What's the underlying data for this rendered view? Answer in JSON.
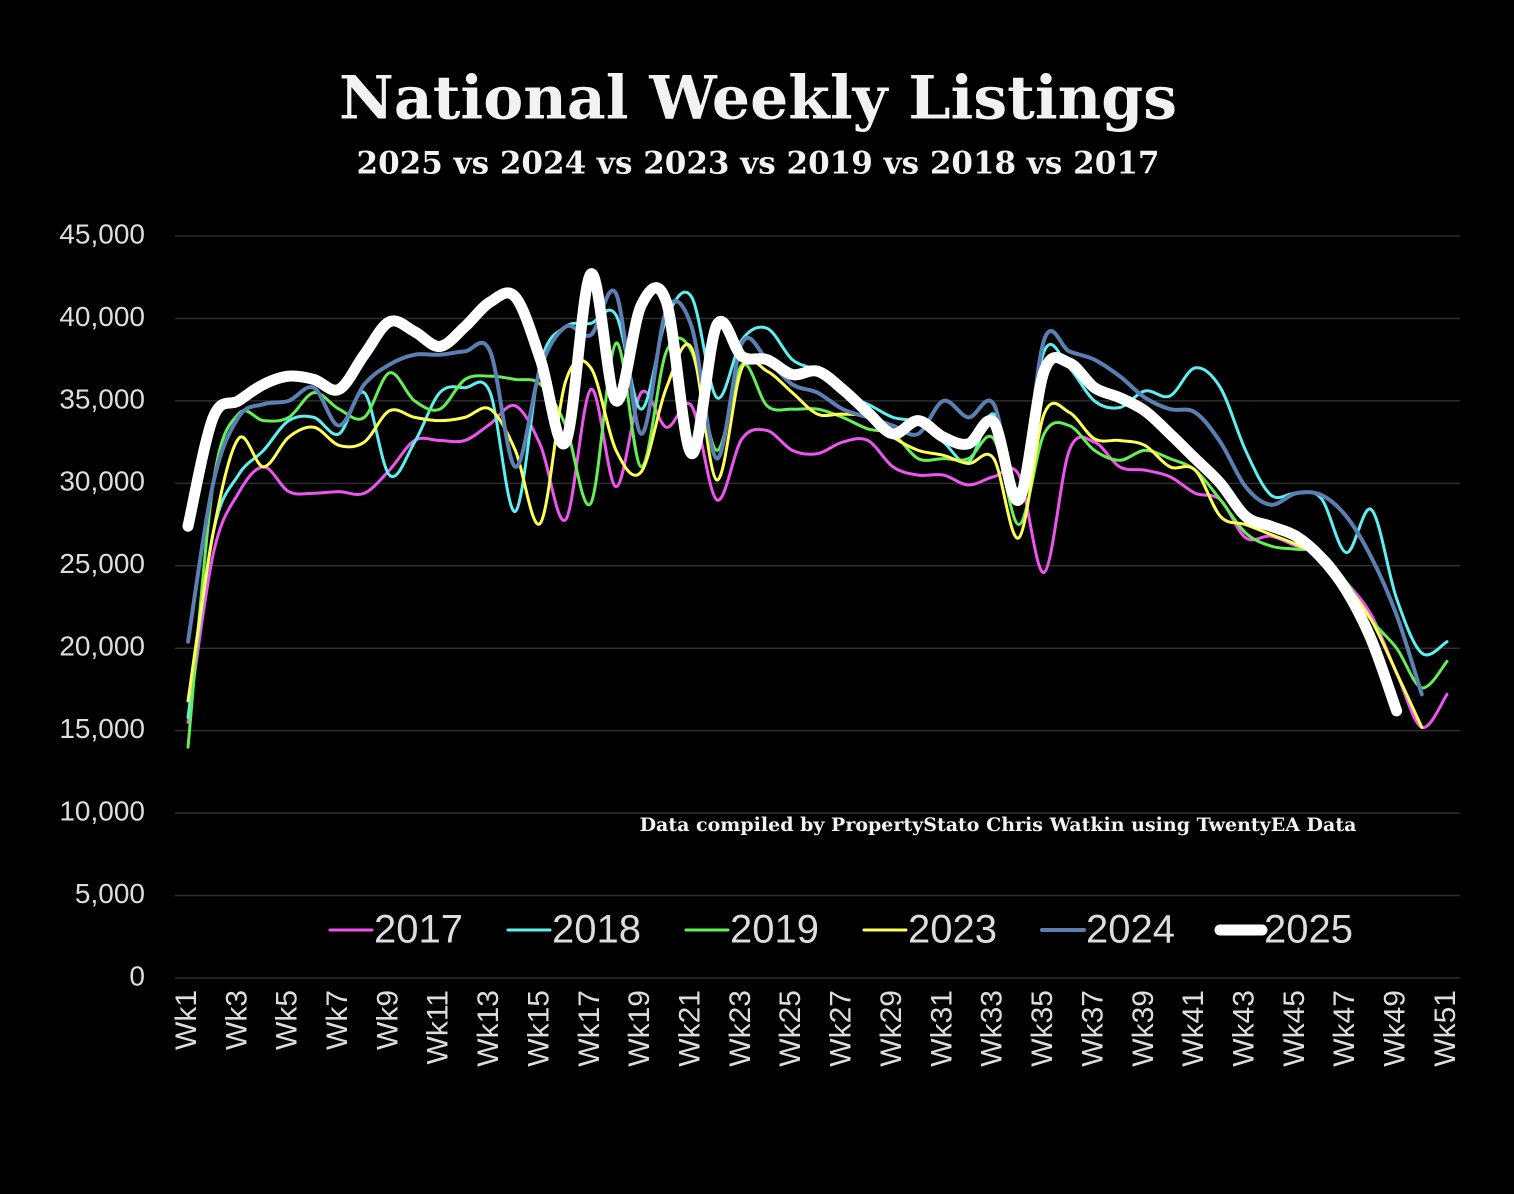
{
  "chart_data": {
    "type": "line",
    "title": "National Weekly Listings",
    "subtitle": "2025 vs 2024 vs 2023 vs 2019 vs 2018 vs 2017",
    "annotation": "Data compiled by PropertyStato Chris Watkin using TwentyEA Data",
    "categories": [
      "Wk1",
      null,
      "Wk3",
      null,
      "Wk5",
      null,
      "Wk7",
      null,
      "Wk9",
      null,
      "Wk11",
      null,
      "Wk13",
      null,
      "Wk15",
      null,
      "Wk17",
      null,
      "Wk19",
      null,
      "Wk21",
      null,
      "Wk23",
      null,
      "Wk25",
      null,
      "Wk27",
      null,
      "Wk29",
      null,
      "Wk31",
      null,
      "Wk33",
      null,
      "Wk35",
      null,
      "Wk37",
      null,
      "Wk39",
      null,
      "Wk41",
      null,
      "Wk43",
      null,
      "Wk45",
      null,
      "Wk47",
      null,
      "Wk49",
      null,
      "Wk51"
    ],
    "ylim": [
      0,
      45000
    ],
    "yticks": [
      0,
      {
        "value": 5000,
        "label": "5,000"
      },
      {
        "value": 10000,
        "label": "10,000"
      },
      {
        "value": 15000,
        "label": "15,000"
      },
      {
        "value": 20000,
        "label": "20,000"
      },
      {
        "value": 25000,
        "label": "25,000"
      },
      {
        "value": 30000,
        "label": "30,000"
      },
      {
        "value": 35000,
        "label": "35,000"
      },
      {
        "value": 40000,
        "label": "40,000"
      },
      {
        "value": 45000,
        "label": "45,000"
      }
    ],
    "grid": true,
    "smooth": true,
    "legend": "inside-bottom",
    "series": [
      {
        "name": "2017",
        "color": "#ee55ee",
        "width": 3,
        "values": [
          15500,
          25700,
          29400,
          31000,
          29500,
          29400,
          29500,
          29400,
          30800,
          32600,
          32600,
          32600,
          33600,
          34700,
          32300,
          27800,
          35700,
          29800,
          35500,
          33400,
          34700,
          29000,
          32700,
          33200,
          32000,
          31800,
          32500,
          32600,
          31000,
          30500,
          30500,
          29900,
          30400,
          30500,
          24600,
          32000,
          32500,
          31000,
          30800,
          30400,
          29400,
          29000,
          26700,
          26800,
          26200,
          25600,
          24000,
          22000,
          18500,
          15200,
          17200
        ]
      },
      {
        "name": "2018",
        "color": "#5ef0f0",
        "width": 3,
        "values": [
          15800,
          27000,
          30500,
          32000,
          33800,
          34000,
          33000,
          35500,
          30500,
          32500,
          35500,
          35800,
          35500,
          28300,
          37300,
          39500,
          39700,
          40200,
          34500,
          40000,
          41300,
          35200,
          38700,
          39400,
          37500,
          36800,
          35400,
          34800,
          34000,
          33700,
          32500,
          31300,
          34200,
          29700,
          38000,
          37000,
          35000,
          34600,
          35600,
          35300,
          37000,
          35800,
          32000,
          29300,
          29400,
          29100,
          25800,
          28400,
          23000,
          19700,
          20400
        ]
      },
      {
        "name": "2019",
        "color": "#66ee55",
        "width": 3,
        "values": [
          14000,
          30000,
          34200,
          33800,
          34000,
          35500,
          34500,
          34000,
          36700,
          35000,
          34500,
          36300,
          36500,
          36300,
          36000,
          33500,
          28800,
          38500,
          31000,
          38000,
          38000,
          32000,
          37200,
          34700,
          34500,
          34500,
          34000,
          33300,
          33000,
          31500,
          31500,
          31500,
          32700,
          27500,
          33000,
          33500,
          32000,
          31400,
          32000,
          31500,
          30800,
          29000,
          27000,
          26200,
          26000,
          25800,
          24000,
          21700,
          20000,
          17600,
          19200
        ]
      },
      {
        "name": "2023",
        "color": "#ffff55",
        "width": 3,
        "values": [
          16800,
          27000,
          32700,
          31000,
          32800,
          33400,
          32300,
          32500,
          34400,
          34000,
          33800,
          34000,
          34500,
          32000,
          27600,
          36200,
          37000,
          32000,
          30700,
          35800,
          38200,
          30200,
          37000,
          36800,
          35500,
          34200,
          34200,
          34000,
          32800,
          32000,
          31700,
          31200,
          31500,
          26700,
          34200,
          34300,
          32700,
          32600,
          32300,
          31000,
          30800,
          28000,
          27500,
          26900,
          26300,
          25500,
          23800,
          21700,
          18500,
          15200,
          null
        ]
      },
      {
        "name": "2024",
        "color": "#5a7fb0",
        "width": 4,
        "values": [
          20400,
          30000,
          34000,
          34800,
          35000,
          35800,
          33500,
          36000,
          37200,
          37800,
          37800,
          38000,
          38000,
          31000,
          37000,
          39500,
          39000,
          41500,
          33000,
          40500,
          39500,
          31500,
          38500,
          37500,
          36000,
          35500,
          34500,
          34000,
          33500,
          33000,
          35000,
          34000,
          34800,
          29200,
          38700,
          38000,
          37500,
          36500,
          35200,
          34500,
          34300,
          32500,
          29800,
          28700,
          29400,
          29300,
          28000,
          25500,
          22000,
          17200,
          null
        ]
      },
      {
        "name": "2025",
        "color": "#ffffff",
        "width": 11,
        "values": [
          27400,
          34000,
          35000,
          36000,
          36500,
          36300,
          35700,
          37800,
          39800,
          39200,
          38300,
          39500,
          41000,
          41300,
          37500,
          32500,
          42700,
          35000,
          40800,
          41000,
          31800,
          39600,
          37700,
          37500,
          36600,
          36800,
          35700,
          34300,
          33000,
          33800,
          32800,
          32400,
          33700,
          29000,
          36800,
          37300,
          35800,
          35200,
          34400,
          33000,
          31500,
          30000,
          28000,
          27400,
          26800,
          25500,
          23500,
          20500,
          16200,
          null,
          null
        ]
      }
    ]
  }
}
